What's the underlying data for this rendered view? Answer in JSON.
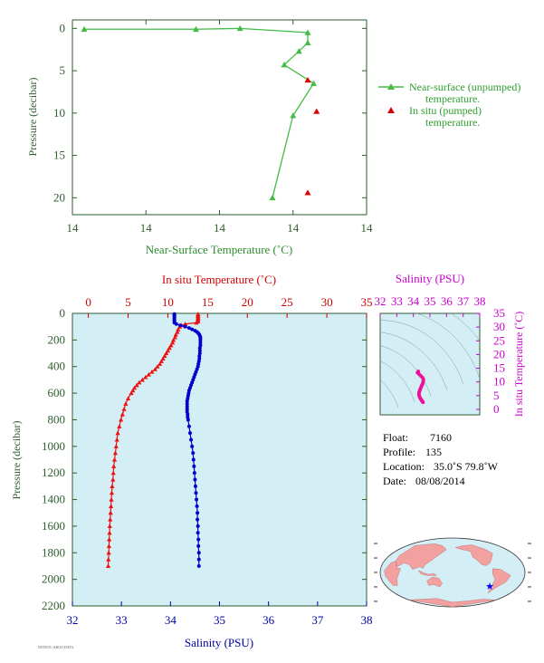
{
  "chart_data": [
    {
      "id": "near_surface",
      "type": "line",
      "xlabel": "Near-Surface Temperature (˚C)",
      "ylabel": "Pressure (decibar)",
      "x_tick_labels": [
        "14",
        "14",
        "14",
        "14",
        "14"
      ],
      "ylim": [
        22,
        -1
      ],
      "y_ticks": [
        0,
        5,
        10,
        15,
        20
      ],
      "series": [
        {
          "name": "Near-surface (unpumped) temperature.",
          "color": "#44bb44",
          "marker": "triangle",
          "points": [
            [
              0.04,
              0.1
            ],
            [
              0.42,
              0.1
            ],
            [
              0.57,
              0.0
            ],
            [
              0.8,
              0.5
            ],
            [
              0.8,
              1.7
            ],
            [
              0.77,
              2.7
            ],
            [
              0.72,
              4.3
            ],
            [
              0.82,
              6.5
            ],
            [
              0.75,
              10.3
            ],
            [
              0.68,
              20.0
            ]
          ]
        },
        {
          "name": "In situ (pumped) temperature.",
          "color": "#dd0000",
          "marker": "triangle",
          "points": [
            [
              0.8,
              6.1
            ],
            [
              0.83,
              9.8
            ],
            [
              0.8,
              19.4
            ]
          ]
        }
      ]
    },
    {
      "id": "profile",
      "type": "scatter",
      "top_axis_label": "In situ Temperature (˚C)",
      "bottom_axis_label": "Salinity (PSU)",
      "ylabel": "Pressure (decibar)",
      "temp_lim": [
        -2,
        35
      ],
      "temp_ticks": [
        0,
        5,
        10,
        15,
        20,
        25,
        30,
        35
      ],
      "sal_lim": [
        32,
        38
      ],
      "sal_ticks": [
        32,
        33,
        34,
        35,
        36,
        37,
        38
      ],
      "ylim": [
        2200,
        0
      ],
      "y_ticks": [
        0,
        200,
        400,
        600,
        800,
        1000,
        1200,
        1400,
        1600,
        1800,
        2000,
        2200
      ],
      "temperature": {
        "color": "#ee1111",
        "pressure": [
          5,
          10,
          20,
          30,
          40,
          50,
          60,
          70,
          80,
          90,
          100,
          120,
          140,
          160,
          180,
          200,
          220,
          240,
          260,
          280,
          300,
          320,
          340,
          360,
          380,
          400,
          420,
          440,
          460,
          480,
          500,
          520,
          540,
          560,
          580,
          600,
          640,
          680,
          720,
          760,
          800,
          850,
          900,
          950,
          1000,
          1050,
          1100,
          1150,
          1200,
          1250,
          1300,
          1350,
          1400,
          1450,
          1500,
          1550,
          1600,
          1650,
          1700,
          1750,
          1800,
          1850,
          1900
        ],
        "values": [
          13.8,
          13.8,
          13.8,
          13.8,
          13.8,
          13.8,
          13.8,
          13.6,
          12.2,
          11.7,
          11.5,
          11.3,
          11.2,
          11.0,
          10.9,
          10.7,
          10.6,
          10.4,
          10.2,
          10.0,
          9.8,
          9.6,
          9.4,
          9.2,
          9.0,
          8.7,
          8.4,
          8.0,
          7.6,
          7.2,
          6.8,
          6.4,
          6.1,
          5.8,
          5.6,
          5.4,
          5.0,
          4.7,
          4.5,
          4.3,
          4.1,
          3.9,
          3.7,
          3.6,
          3.5,
          3.4,
          3.3,
          3.2,
          3.15,
          3.1,
          3.0,
          2.95,
          2.9,
          2.85,
          2.8,
          2.75,
          2.7,
          2.67,
          2.63,
          2.6,
          2.57,
          2.53,
          2.5
        ]
      },
      "salinity": {
        "color": "#0000cc",
        "pressure": [
          5,
          10,
          20,
          30,
          40,
          50,
          60,
          70,
          80,
          90,
          100,
          110,
          120,
          130,
          140,
          150,
          160,
          170,
          180,
          190,
          200,
          220,
          240,
          260,
          280,
          300,
          320,
          340,
          360,
          380,
          400,
          420,
          440,
          460,
          480,
          500,
          520,
          540,
          560,
          580,
          600,
          620,
          640,
          660,
          680,
          700,
          720,
          740,
          760,
          780,
          800,
          850,
          900,
          950,
          1000,
          1050,
          1100,
          1150,
          1200,
          1250,
          1300,
          1350,
          1400,
          1450,
          1500,
          1550,
          1600,
          1650,
          1700,
          1750,
          1800,
          1850,
          1900
        ],
        "values": [
          34.08,
          34.08,
          34.08,
          34.08,
          34.08,
          34.08,
          34.08,
          34.08,
          34.12,
          34.2,
          34.3,
          34.38,
          34.44,
          34.5,
          34.54,
          34.57,
          34.59,
          34.6,
          34.61,
          34.61,
          34.61,
          34.61,
          34.61,
          34.6,
          34.6,
          34.6,
          34.59,
          34.59,
          34.58,
          34.57,
          34.56,
          34.54,
          34.52,
          34.5,
          34.48,
          34.46,
          34.44,
          34.42,
          34.4,
          34.38,
          34.37,
          34.36,
          34.35,
          34.34,
          34.34,
          34.34,
          34.34,
          34.34,
          34.35,
          34.35,
          34.36,
          34.38,
          34.4,
          34.42,
          34.44,
          34.46,
          34.47,
          34.48,
          34.49,
          34.5,
          34.51,
          34.52,
          34.53,
          34.54,
          34.55,
          34.55,
          34.56,
          34.56,
          34.57,
          34.57,
          34.58,
          34.58,
          34.58
        ]
      }
    },
    {
      "id": "ts",
      "type": "scatter",
      "xlabel": "Salinity (PSU)",
      "ylabel": "In situ Temperature (˚C)",
      "xlim": [
        32,
        38
      ],
      "x_ticks": [
        32,
        33,
        34,
        35,
        36,
        37,
        38
      ],
      "ylim": [
        -2,
        35
      ],
      "y_ticks": [
        0,
        5,
        10,
        15,
        20,
        25,
        30,
        35
      ],
      "color": "#ee1199",
      "points": [
        [
          34.3,
          13.8
        ],
        [
          34.25,
          13.4
        ],
        [
          34.35,
          12.8
        ],
        [
          34.45,
          12.2
        ],
        [
          34.55,
          11.6
        ],
        [
          34.6,
          11.0
        ],
        [
          34.6,
          10.4
        ],
        [
          34.58,
          9.8
        ],
        [
          34.55,
          9.2
        ],
        [
          34.5,
          8.6
        ],
        [
          34.46,
          8.0
        ],
        [
          34.42,
          7.4
        ],
        [
          34.38,
          6.8
        ],
        [
          34.35,
          6.2
        ],
        [
          34.34,
          5.6
        ],
        [
          34.35,
          5.0
        ],
        [
          34.38,
          4.5
        ],
        [
          34.42,
          4.0
        ],
        [
          34.46,
          3.6
        ],
        [
          34.5,
          3.3
        ],
        [
          34.53,
          3.0
        ],
        [
          34.56,
          2.8
        ],
        [
          34.58,
          2.6
        ]
      ]
    }
  ],
  "float_info": {
    "float_label": "Float:",
    "float_value": "7160",
    "profile_label": "Profile:",
    "profile_value": "135",
    "location_label": "Location:",
    "location_value": "35.0˚S  79.8˚W",
    "date_label": "Date:",
    "date_value": "08/08/2014"
  },
  "map": {
    "land_color": "#f2a0a0",
    "ocean_color": "#d4eef6",
    "marker_color": "#0000ff",
    "marker_lat": -35.0,
    "marker_lon": -79.8
  },
  "footer_text": "NOTICE: ARGO DATA"
}
